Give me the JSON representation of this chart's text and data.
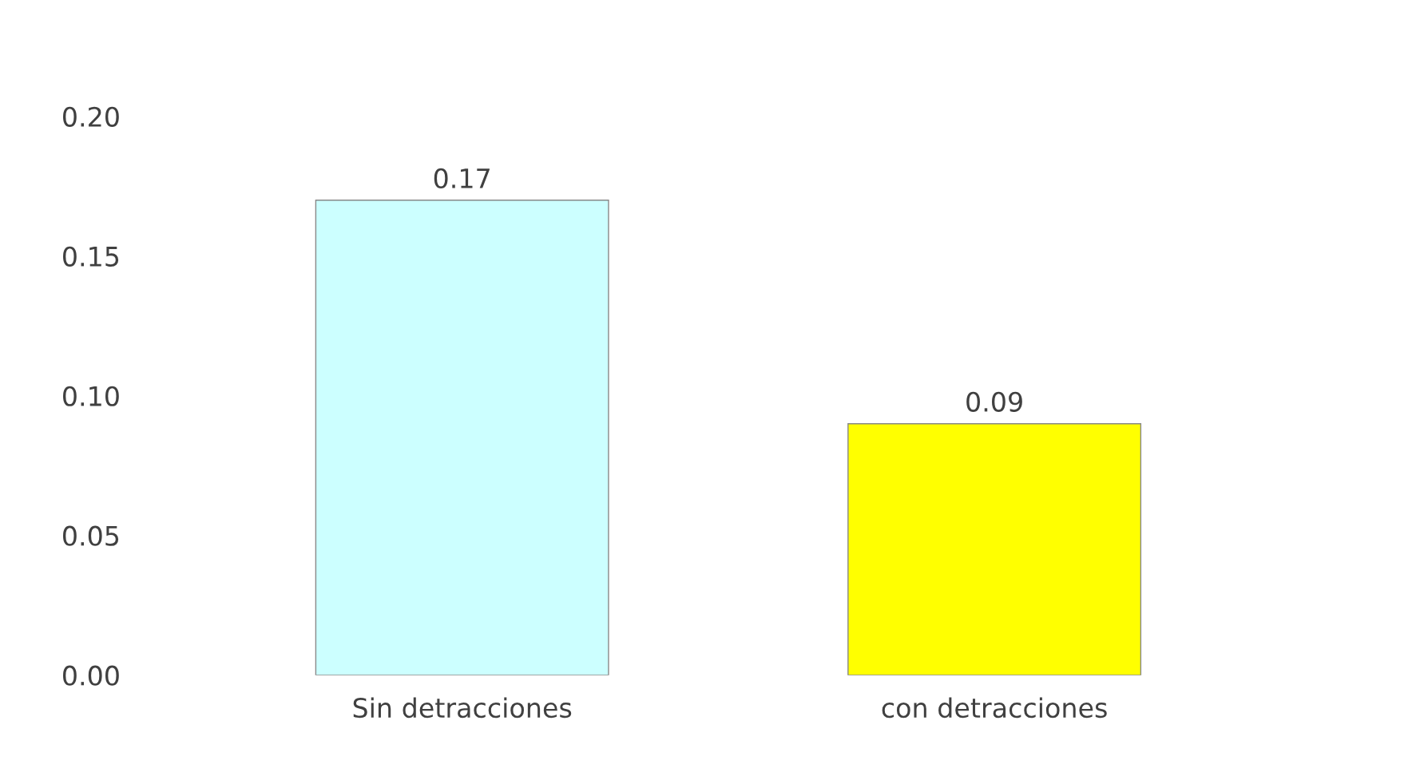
{
  "chart_data": {
    "type": "bar",
    "categories": [
      "Sin detracciones",
      "con detracciones"
    ],
    "values": [
      0.17,
      0.09
    ],
    "colors": [
      "#ccffff",
      "#ffff00"
    ],
    "ylim": [
      0,
      0.2
    ],
    "yticks": [
      {
        "value": 0,
        "label": "0.00"
      },
      {
        "value": 0.05,
        "label": "0.05"
      },
      {
        "value": 0.1,
        "label": "0.10"
      },
      {
        "value": 0.15,
        "label": "0.15"
      },
      {
        "value": 0.2,
        "label": "0.20"
      }
    ],
    "data_labels": true,
    "grid": false,
    "legend": false
  }
}
